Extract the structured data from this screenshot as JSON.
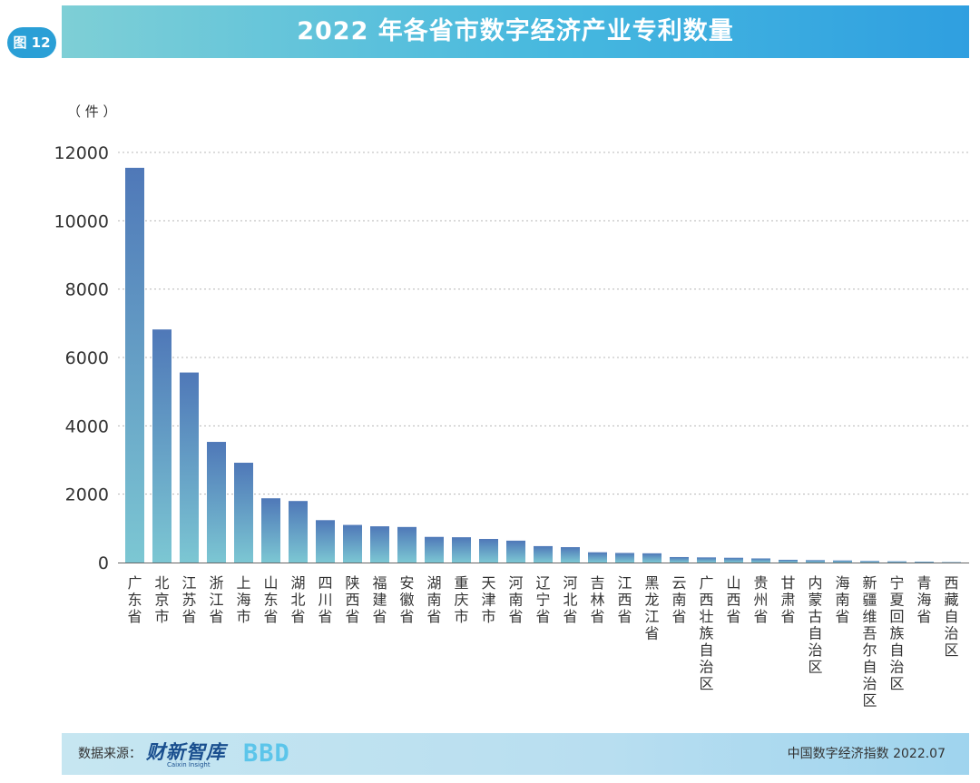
{
  "header": {
    "figure_label": "图 12",
    "title": "2022 年各省市数字经济产业专利数量"
  },
  "footer": {
    "source_label": "数据来源：",
    "source_logo": "财新智库",
    "source_logo_en": "Caixin Insight",
    "partner_logo": "BBD",
    "right_text": "中国数字经济指数 2022.07"
  },
  "chart_data": {
    "type": "bar",
    "title": "2022 年各省市数字经济产业专利数量",
    "ylabel": "（ 件 ）",
    "xlabel": "",
    "ylim": [
      0,
      12000
    ],
    "yticks": [
      0,
      2000,
      4000,
      6000,
      8000,
      10000,
      12000
    ],
    "grid": true,
    "legend": "none",
    "colors": {
      "bar_top": "#4f78b8",
      "bar_bottom": "#7cc7d3",
      "grid": "#b8b8b8",
      "axis": "#666666"
    },
    "categories": [
      "广东省",
      "北京市",
      "江苏省",
      "浙江省",
      "上海市",
      "山东省",
      "湖北省",
      "四川省",
      "陕西省",
      "福建省",
      "安徽省",
      "湖南省",
      "重庆市",
      "天津市",
      "河南省",
      "辽宁省",
      "河北省",
      "吉林省",
      "江西省",
      "黑龙江省",
      "云南省",
      "广西壮族自治区",
      "山西省",
      "贵州省",
      "甘肃省",
      "内蒙古自治区",
      "海南省",
      "新疆维吾尔自治区",
      "宁夏回族自治区",
      "青海省",
      "西藏自治区"
    ],
    "values": [
      11550,
      6820,
      5560,
      3530,
      2920,
      1880,
      1800,
      1240,
      1100,
      1060,
      1040,
      750,
      740,
      690,
      640,
      480,
      450,
      300,
      280,
      270,
      160,
      150,
      140,
      120,
      80,
      70,
      60,
      45,
      35,
      25,
      8
    ]
  }
}
